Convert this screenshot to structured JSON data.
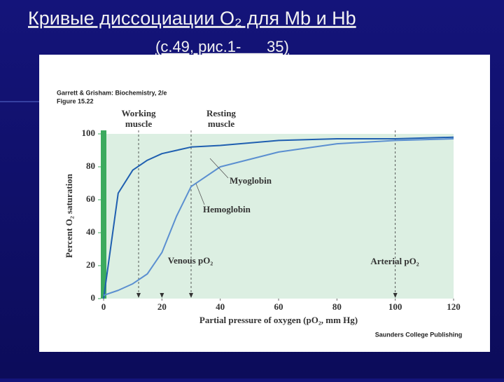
{
  "slide": {
    "title": "Кривые диссоциации O₂ для Mb и Hb",
    "subtitle": "(с.49, рис.1-      35)"
  },
  "chart_data": {
    "type": "line",
    "source": "Garrett & Grisham: Biochemistry, 2/e",
    "figure": "Figure 15.22",
    "publisher": "Saunders College Publishing",
    "x_label": "Partial pressure of oxygen (pO₂, mm Hg)",
    "y_label": "Percent O₂ saturation",
    "x": [
      0,
      5,
      10,
      15,
      20,
      25,
      30,
      40,
      60,
      80,
      100,
      120
    ],
    "series": [
      {
        "name": "Myoglobin",
        "color": "#1f5fb0",
        "values": [
          0,
          64,
          78,
          84,
          88,
          90,
          92,
          93,
          96,
          97,
          97,
          98
        ]
      },
      {
        "name": "Hemoglobin",
        "color": "#5b8fd0",
        "values": [
          2,
          5,
          9,
          15,
          28,
          50,
          68,
          80,
          89,
          94,
          96,
          97
        ]
      }
    ],
    "xlim": [
      0,
      120
    ],
    "ylim": [
      0,
      100
    ],
    "xticks": [
      0,
      20,
      40,
      60,
      80,
      100,
      120
    ],
    "yticks": [
      0,
      20,
      40,
      60,
      80,
      100
    ],
    "reference_lines": [
      {
        "x": 12,
        "label": "Working muscle"
      },
      {
        "x": 30,
        "label": "Resting muscle"
      },
      {
        "x": 100,
        "label": "Arterial pO₂"
      }
    ],
    "arrows_x": [
      12,
      20,
      30,
      100
    ],
    "venous_label": "Venous pO₂"
  }
}
